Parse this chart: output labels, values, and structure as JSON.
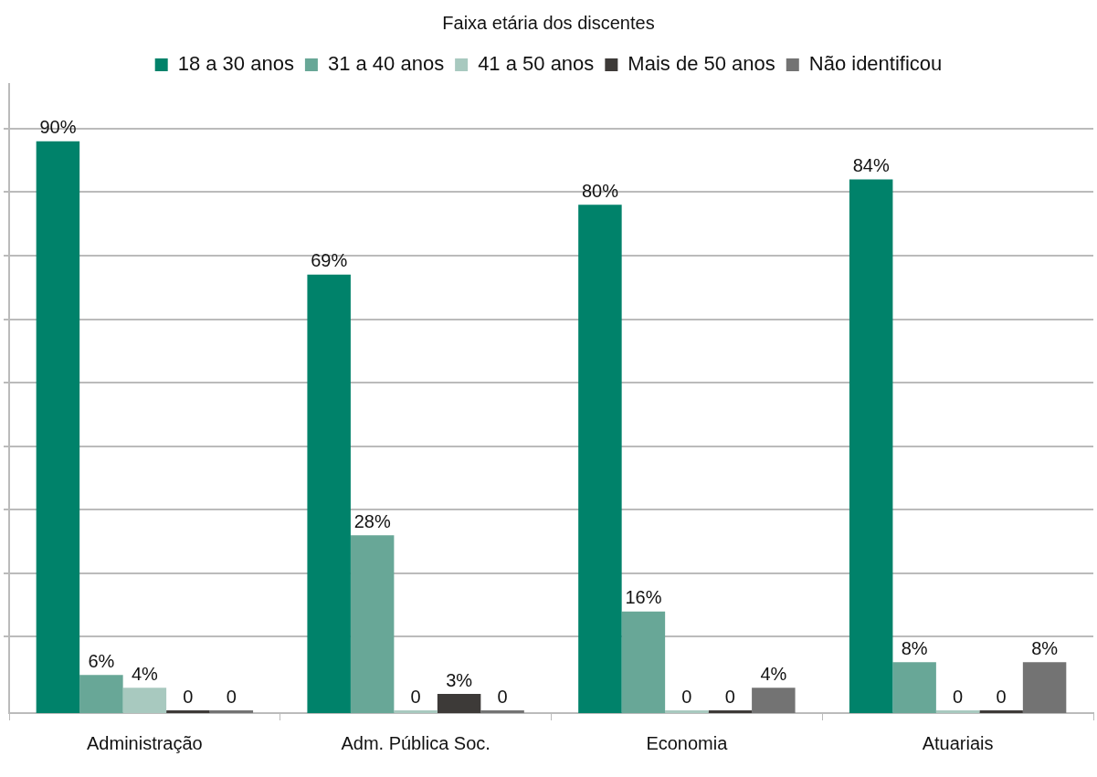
{
  "chart_data": {
    "type": "bar",
    "title": "Faixa etária dos discentes",
    "categories": [
      "Administração",
      "Adm. Pública Soc.",
      "Economia",
      "Atuariais"
    ],
    "series": [
      {
        "name": "18 a 30 anos",
        "color": "#00826a",
        "values": [
          90,
          69,
          80,
          84
        ],
        "value_labels": [
          "90%",
          "69%",
          "80%",
          "84%"
        ]
      },
      {
        "name": "31 a 40 anos",
        "color": "#68a797",
        "values": [
          6,
          28,
          16,
          8
        ],
        "value_labels": [
          "6%",
          "28%",
          "16%",
          "8%"
        ]
      },
      {
        "name": "41 a 50 anos",
        "color": "#a8c9bf",
        "values": [
          4,
          0,
          0,
          0
        ],
        "value_labels": [
          "4%",
          "0",
          "0",
          "0"
        ]
      },
      {
        "name": "Mais de 50 anos",
        "color": "#3d3a38",
        "values": [
          0,
          3,
          0,
          0
        ],
        "value_labels": [
          "0",
          "3%",
          "0",
          "0"
        ]
      },
      {
        "name": "Não identificou",
        "color": "#737373",
        "values": [
          0,
          0,
          4,
          8
        ],
        "value_labels": [
          "0",
          "0",
          "4%",
          "8%"
        ]
      }
    ],
    "ylim": [
      0,
      99
    ],
    "yticks": [
      {
        "value": 12,
        "label": null
      },
      {
        "value": 22,
        "label": null
      },
      {
        "value": 32,
        "label": null
      },
      {
        "value": 42,
        "label": null
      },
      {
        "value": 52,
        "label": null
      },
      {
        "value": 62,
        "label": null
      },
      {
        "value": 72,
        "label": null
      },
      {
        "value": 82,
        "label": null
      },
      {
        "value": 92,
        "label": null
      }
    ],
    "grid": "y",
    "legend": "top",
    "tick_labels": "x"
  }
}
